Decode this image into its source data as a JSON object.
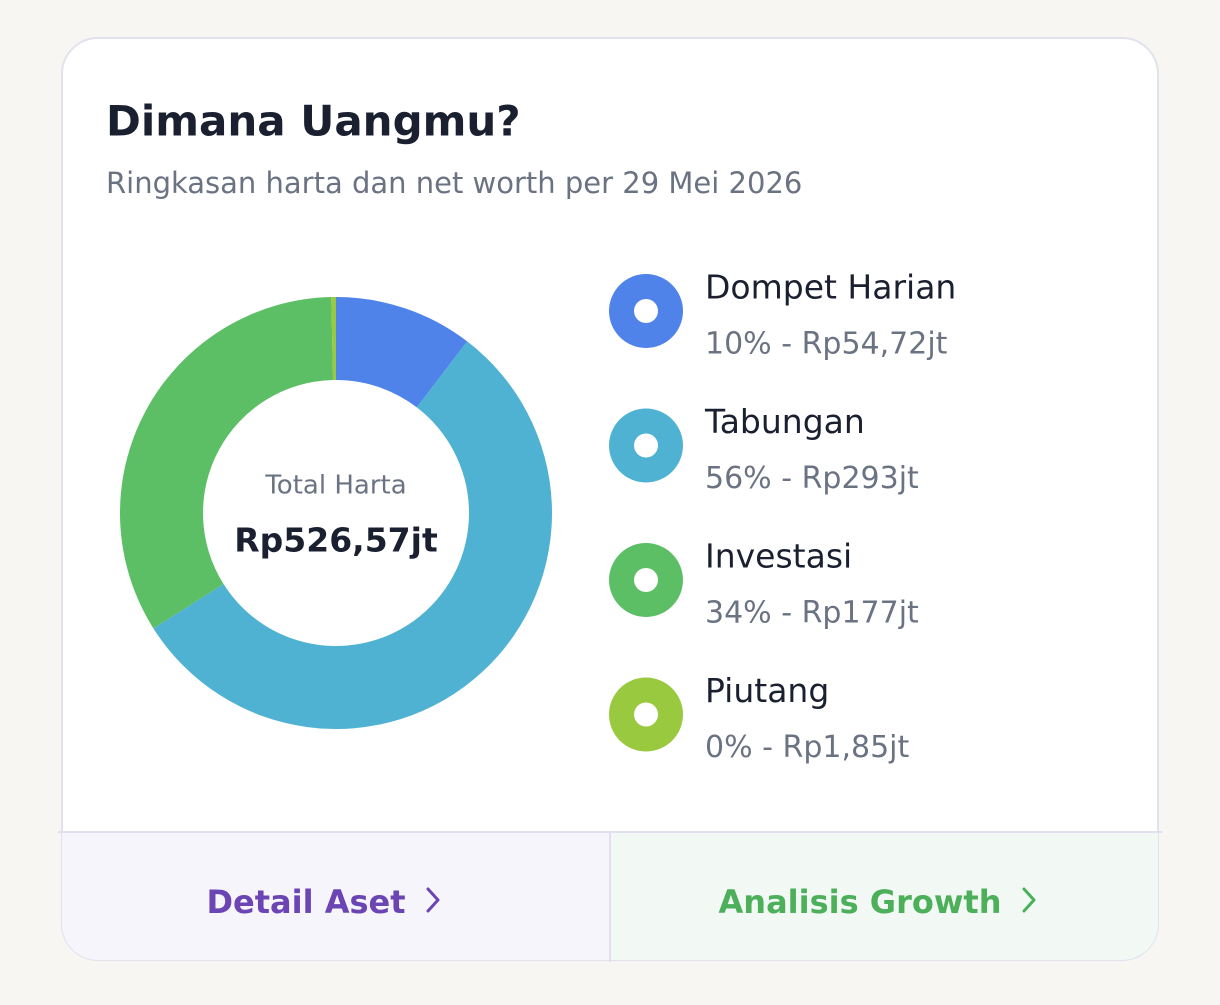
{
  "card": {
    "title": "Dimana Uangmu?",
    "subtitle": "Ringkasan harta dan net worth per 29 Mei 2026"
  },
  "chart_data": {
    "type": "donut",
    "categories": [
      "Dompet Harian",
      "Tabungan",
      "Investasi",
      "Piutang"
    ],
    "values": [
      54.72,
      293,
      177,
      1.85
    ],
    "value_labels": [
      "10% - Rp54,72jt",
      "56% - Rp293jt",
      "34% - Rp177jt",
      "0% - Rp1,85jt"
    ],
    "colors": [
      "#4f83ea",
      "#4fb2d2",
      "#5cbf66",
      "#98c93f"
    ],
    "center_label": "Total Harta",
    "center_value": "Rp526,57jt"
  },
  "buttons": [
    "Detail Aset",
    "Analisis Growth"
  ]
}
